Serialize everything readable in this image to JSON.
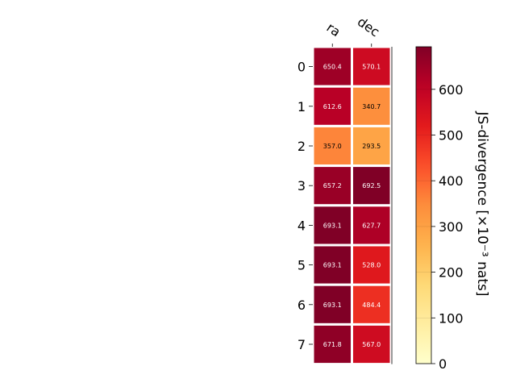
{
  "chart_data": {
    "type": "heatmap",
    "title": "",
    "x_categories": [
      "ra",
      "dec"
    ],
    "y_categories": [
      "0",
      "1",
      "2",
      "3",
      "4",
      "5",
      "6",
      "7"
    ],
    "values": [
      [
        650.4,
        570.1
      ],
      [
        612.6,
        340.7
      ],
      [
        357.0,
        293.5
      ],
      [
        657.2,
        692.5
      ],
      [
        693.1,
        627.7
      ],
      [
        693.1,
        528.0
      ],
      [
        693.1,
        484.4
      ],
      [
        671.8,
        567.0
      ]
    ],
    "value_labels": [
      [
        "650.4",
        "570.1"
      ],
      [
        "612.6",
        "340.7"
      ],
      [
        "357.0",
        "293.5"
      ],
      [
        "657.2",
        "692.5"
      ],
      [
        "693.1",
        "627.7"
      ],
      [
        "693.1",
        "528.0"
      ],
      [
        "693.1",
        "484.4"
      ],
      [
        "671.8",
        "567.0"
      ]
    ],
    "colorbar": {
      "label": "JS-divergence [×10⁻³ nats]",
      "range": [
        0,
        693.1
      ],
      "ticks": [
        0,
        100,
        200,
        300,
        400,
        500,
        600
      ],
      "tick_labels": [
        "0",
        "100",
        "200",
        "300",
        "400",
        "500",
        "600"
      ],
      "colormap": "YlOrRd"
    },
    "colors": {
      "dark_text": "#000000",
      "light_text": "#ffffff",
      "grid": "#ffffff"
    }
  }
}
